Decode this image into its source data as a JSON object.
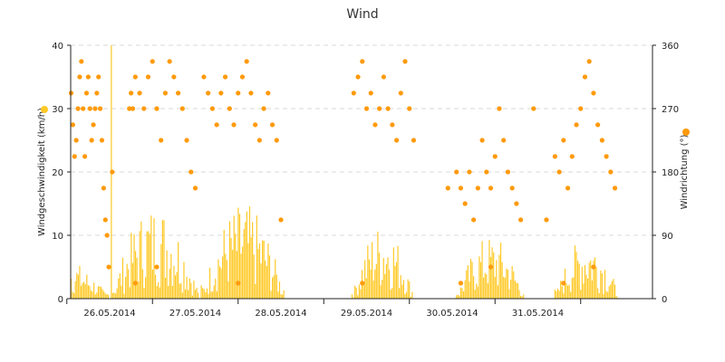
{
  "chart_data": {
    "type": "line",
    "title": "Wind",
    "ylabel_left": "Windgeschwindigkeit (km/h)",
    "ylabel_right": "Windrichtung (°)",
    "y_left_ticks": [
      "0",
      "10",
      "20",
      "30",
      "40"
    ],
    "y_right_ticks": [
      "0",
      "90",
      "180",
      "270",
      "360"
    ],
    "ylim_left": [
      0,
      40
    ],
    "ylim_right": [
      0,
      360
    ],
    "x_tick_labels": [
      "26.05.2014",
      "27.05.2014",
      "28.05.2014",
      "29.05.2014",
      "30.05.2014",
      "31.05.2014"
    ],
    "grid": "horizontal dashed",
    "colors": {
      "speed": "#ffc926",
      "direction": "#ff9a0c",
      "grid": "#d8d8d8",
      "axis": "#222222"
    },
    "series": [
      {
        "key": "speed",
        "type": "bar",
        "days_offset_first_label": -0.75,
        "segments": [
          {
            "start": -0.6,
            "end": 0.75,
            "peak": 7,
            "values": []
          },
          {
            "start": 0.77,
            "end": 1.8,
            "peak": 40,
            "values": []
          },
          {
            "start": 1.82,
            "end": 2.8,
            "peak": 15,
            "values": []
          },
          {
            "start": 3.58,
            "end": 4.3,
            "peak": 12,
            "values": []
          },
          {
            "start": 4.8,
            "end": 5.6,
            "peak": 10,
            "values": []
          },
          {
            "start": 5.95,
            "end": 6.7,
            "peak": 10,
            "values": []
          },
          {
            "start": 7.3,
            "end": 7.85,
            "peak": 12,
            "values": []
          }
        ]
      },
      {
        "key": "direction",
        "type": "scatter",
        "points": [
          [
            0.1,
            315
          ],
          [
            0.12,
            292
          ],
          [
            0.14,
            270
          ],
          [
            0.16,
            112
          ],
          [
            0.18,
            247
          ],
          [
            0.2,
            157
          ],
          [
            0.22,
            135
          ],
          [
            0.25,
            337
          ],
          [
            0.28,
            270
          ],
          [
            0.3,
            292
          ],
          [
            0.32,
            247
          ],
          [
            0.34,
            202
          ],
          [
            0.36,
            225
          ],
          [
            0.38,
            270
          ],
          [
            0.4,
            315
          ],
          [
            0.42,
            337
          ],
          [
            0.44,
            270
          ],
          [
            0.46,
            202
          ],
          [
            0.48,
            292
          ],
          [
            0.5,
            315
          ],
          [
            0.52,
            270
          ],
          [
            0.54,
            225
          ],
          [
            0.56,
            247
          ],
          [
            0.58,
            270
          ],
          [
            0.6,
            292
          ],
          [
            0.62,
            315
          ],
          [
            0.64,
            270
          ],
          [
            0.66,
            225
          ],
          [
            0.68,
            157
          ],
          [
            0.7,
            112
          ],
          [
            0.72,
            90
          ],
          [
            0.74,
            45
          ],
          [
            0.78,
            180
          ],
          [
            0.98,
            270
          ],
          [
            1.0,
            292
          ],
          [
            1.02,
            270
          ],
          [
            1.05,
            315
          ],
          [
            1.1,
            292
          ],
          [
            1.15,
            270
          ],
          [
            1.2,
            315
          ],
          [
            1.25,
            337
          ],
          [
            1.3,
            270
          ],
          [
            1.35,
            225
          ],
          [
            1.4,
            292
          ],
          [
            1.45,
            337
          ],
          [
            1.5,
            315
          ],
          [
            1.55,
            292
          ],
          [
            1.6,
            270
          ],
          [
            1.65,
            225
          ],
          [
            1.7,
            180
          ],
          [
            1.75,
            157
          ],
          [
            1.85,
            315
          ],
          [
            1.9,
            292
          ],
          [
            1.95,
            270
          ],
          [
            2.0,
            247
          ],
          [
            2.05,
            292
          ],
          [
            2.1,
            315
          ],
          [
            2.15,
            270
          ],
          [
            2.2,
            247
          ],
          [
            2.25,
            292
          ],
          [
            2.3,
            315
          ],
          [
            2.35,
            337
          ],
          [
            2.4,
            292
          ],
          [
            2.45,
            247
          ],
          [
            2.5,
            225
          ],
          [
            2.55,
            270
          ],
          [
            2.6,
            292
          ],
          [
            2.65,
            247
          ],
          [
            2.7,
            225
          ],
          [
            2.75,
            112
          ],
          [
            3.6,
            292
          ],
          [
            3.65,
            315
          ],
          [
            3.7,
            337
          ],
          [
            3.75,
            270
          ],
          [
            3.8,
            292
          ],
          [
            3.85,
            247
          ],
          [
            3.9,
            270
          ],
          [
            3.95,
            315
          ],
          [
            4.0,
            270
          ],
          [
            4.05,
            247
          ],
          [
            4.1,
            225
          ],
          [
            4.15,
            292
          ],
          [
            4.2,
            337
          ],
          [
            4.25,
            270
          ],
          [
            4.3,
            225
          ],
          [
            4.7,
            157
          ],
          [
            4.8,
            180
          ],
          [
            4.85,
            157
          ],
          [
            4.9,
            135
          ],
          [
            4.95,
            180
          ],
          [
            5.0,
            112
          ],
          [
            5.05,
            157
          ],
          [
            5.1,
            225
          ],
          [
            5.15,
            180
          ],
          [
            5.2,
            157
          ],
          [
            5.25,
            202
          ],
          [
            5.3,
            270
          ],
          [
            5.35,
            225
          ],
          [
            5.4,
            180
          ],
          [
            5.45,
            157
          ],
          [
            5.5,
            135
          ],
          [
            5.55,
            112
          ],
          [
            5.7,
            270
          ],
          [
            5.85,
            112
          ],
          [
            5.95,
            202
          ],
          [
            6.0,
            180
          ],
          [
            6.05,
            225
          ],
          [
            6.1,
            157
          ],
          [
            6.15,
            202
          ],
          [
            6.2,
            247
          ],
          [
            6.25,
            270
          ],
          [
            6.3,
            315
          ],
          [
            6.35,
            337
          ],
          [
            6.4,
            292
          ],
          [
            6.45,
            247
          ],
          [
            6.5,
            225
          ],
          [
            6.55,
            202
          ],
          [
            6.6,
            180
          ],
          [
            6.65,
            157
          ],
          [
            7.25,
            157
          ],
          [
            7.3,
            337
          ],
          [
            7.35,
            315
          ],
          [
            7.4,
            270
          ],
          [
            7.45,
            292
          ],
          [
            7.5,
            247
          ],
          [
            7.55,
            270
          ],
          [
            7.6,
            315
          ],
          [
            7.65,
            337
          ],
          [
            7.7,
            292
          ],
          [
            7.75,
            270
          ],
          [
            7.8,
            247
          ],
          [
            0.05,
            22
          ],
          [
            0.08,
            45
          ],
          [
            1.05,
            22
          ],
          [
            1.3,
            45
          ],
          [
            2.25,
            22
          ],
          [
            3.7,
            22
          ],
          [
            4.85,
            22
          ],
          [
            5.2,
            45
          ],
          [
            6.05,
            22
          ],
          [
            6.4,
            45
          ],
          [
            7.4,
            22
          ],
          [
            7.78,
            45
          ]
        ]
      }
    ]
  }
}
